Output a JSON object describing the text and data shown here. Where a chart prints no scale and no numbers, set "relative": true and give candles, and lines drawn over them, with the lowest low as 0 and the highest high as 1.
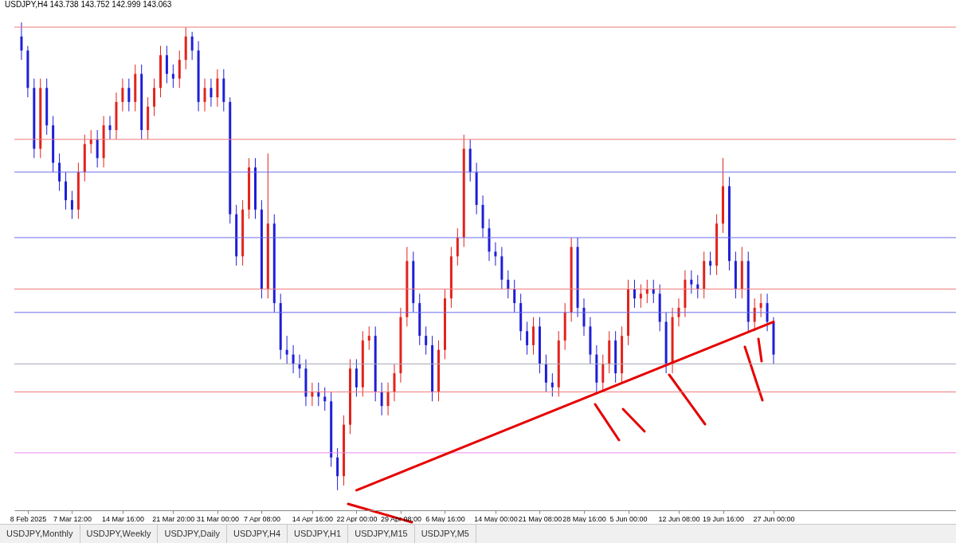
{
  "chart_data": {
    "type": "candlestick",
    "title": "USDJPY,H4  143.738 143.752 142.999 143.063",
    "relative": true,
    "categories": [
      null,
      "8 Feb 2025",
      null,
      null,
      null,
      null,
      null,
      null,
      "7 Mar 12:00",
      null,
      null,
      null,
      null,
      null,
      null,
      null,
      "14 Mar 16:00",
      null,
      null,
      null,
      null,
      null,
      null,
      null,
      "21 Mar 20:00",
      null,
      null,
      null,
      null,
      null,
      null,
      "31 Mar 00:00",
      null,
      null,
      null,
      null,
      null,
      null,
      "7 Apr 08:00",
      null,
      null,
      null,
      null,
      null,
      null,
      null,
      "14 Apr 16:00",
      null,
      null,
      null,
      null,
      null,
      null,
      "22 Apr 00:00",
      null,
      null,
      null,
      null,
      null,
      null,
      "29 Apr 08:00",
      null,
      null,
      null,
      null,
      null,
      null,
      "6 May 16:00",
      null,
      null,
      null,
      null,
      null,
      null,
      null,
      "14 May 00:00",
      null,
      null,
      null,
      null,
      null,
      null,
      "21 May 08:00",
      null,
      null,
      null,
      null,
      null,
      null,
      "28 May 16:00",
      null,
      null,
      null,
      null,
      null,
      null,
      "5 Jun 00:00",
      null,
      null,
      null,
      null,
      null,
      null,
      null,
      "12 Jun 08:00",
      null,
      null,
      null,
      null,
      null,
      null,
      "19 Jun 16:00",
      null,
      null,
      null,
      null,
      null,
      null,
      null,
      "27 Jun 00:00"
    ],
    "colors": [
      "#1e1ed8",
      "#1e1ed8",
      "#1e1ed8",
      "#e3221c",
      "#1e1ed8",
      "#1e1ed8",
      "#1e1ed8",
      "#1e1ed8",
      "#1e1ed8",
      "#e3221c",
      "#e3221c",
      "#e3221c",
      "#1e1ed8",
      "#e3221c",
      "#1e1ed8",
      "#e3221c",
      "#e3221c",
      "#1e1ed8",
      "#e3221c",
      "#1e1ed8",
      "#e3221c",
      "#e3221c",
      "#e3221c",
      "#1e1ed8",
      "#1e1ed8",
      "#e3221c",
      "#e3221c",
      "#1e1ed8",
      "#1e1ed8",
      "#e3221c",
      "#1e1ed8",
      "#e3221c",
      "#1e1ed8",
      "#1e1ed8",
      "#1e1ed8",
      "#e3221c",
      "#e3221c",
      "#1e1ed8",
      "#1e1ed8",
      "#e3221c",
      "#1e1ed8",
      "#1e1ed8",
      "#1e1ed8",
      "#1e1ed8",
      "#1e1ed8",
      "#1e1ed8",
      "#e3221c",
      "#1e1ed8",
      "#1e1ed8",
      "#1e1ed8",
      "#1e1ed8",
      "#e3221c",
      "#e3221c",
      "#1e1ed8",
      "#e3221c",
      "#e3221c",
      "#1e1ed8",
      "#1e1ed8",
      "#e3221c",
      "#e3221c",
      "#e3221c",
      "#e3221c",
      "#1e1ed8",
      "#1e1ed8",
      "#1e1ed8",
      "#1e1ed8",
      "#e3221c",
      "#e3221c",
      "#e3221c",
      "#e3221c",
      "#e3221c",
      "#1e1ed8",
      "#1e1ed8",
      "#1e1ed8",
      "#1e1ed8",
      "#1e1ed8",
      "#1e1ed8",
      "#1e1ed8",
      "#1e1ed8",
      "#1e1ed8",
      "#1e1ed8",
      "#e3221c",
      "#1e1ed8",
      "#1e1ed8",
      "#1e1ed8",
      "#e3221c",
      "#e3221c",
      "#e3221c",
      "#1e1ed8",
      "#1e1ed8",
      "#1e1ed8",
      "#1e1ed8",
      "#e3221c",
      "#e3221c",
      "#1e1ed8",
      "#e3221c",
      "#e3221c",
      "#1e1ed8",
      "#e3221c",
      "#e3221c",
      "#1e1ed8",
      "#1e1ed8",
      "#1e1ed8",
      "#e3221c",
      "#e3221c",
      "#e3221c",
      "#1e1ed8",
      "#1e1ed8",
      "#e3221c",
      "#1e1ed8",
      "#e3221c",
      "#e3221c",
      "#1e1ed8",
      "#1e1ed8",
      "#e3221c",
      "#1e1ed8",
      "#e3221c",
      "#e3221c",
      "#1e1ed8",
      "#1e1ed8"
    ],
    "ohlc": [
      [
        0.97,
        1.0,
        0.92,
        0.94
      ],
      [
        0.94,
        0.95,
        0.84,
        0.86
      ],
      [
        0.86,
        0.88,
        0.71,
        0.73
      ],
      [
        0.73,
        0.88,
        0.71,
        0.86
      ],
      [
        0.86,
        0.88,
        0.76,
        0.78
      ],
      [
        0.78,
        0.8,
        0.68,
        0.7
      ],
      [
        0.7,
        0.72,
        0.64,
        0.66
      ],
      [
        0.66,
        0.68,
        0.6,
        0.62
      ],
      [
        0.62,
        0.64,
        0.58,
        0.6
      ],
      [
        0.6,
        0.7,
        0.58,
        0.68
      ],
      [
        0.68,
        0.76,
        0.66,
        0.74
      ],
      [
        0.74,
        0.77,
        0.72,
        0.75
      ],
      [
        0.75,
        0.77,
        0.69,
        0.71
      ],
      [
        0.71,
        0.8,
        0.69,
        0.78
      ],
      [
        0.78,
        0.8,
        0.75,
        0.77
      ],
      [
        0.77,
        0.85,
        0.75,
        0.83
      ],
      [
        0.83,
        0.88,
        0.81,
        0.86
      ],
      [
        0.86,
        0.88,
        0.81,
        0.83
      ],
      [
        0.83,
        0.91,
        0.81,
        0.89
      ],
      [
        0.89,
        0.91,
        0.75,
        0.77
      ],
      [
        0.77,
        0.84,
        0.75,
        0.82
      ],
      [
        0.82,
        0.88,
        0.8,
        0.86
      ],
      [
        0.86,
        0.95,
        0.84,
        0.93
      ],
      [
        0.93,
        0.95,
        0.87,
        0.89
      ],
      [
        0.89,
        0.91,
        0.86,
        0.88
      ],
      [
        0.88,
        0.94,
        0.86,
        0.92
      ],
      [
        0.92,
        0.99,
        0.9,
        0.97
      ],
      [
        0.97,
        0.98,
        0.92,
        0.94
      ],
      [
        0.94,
        0.96,
        0.81,
        0.83
      ],
      [
        0.83,
        0.88,
        0.81,
        0.86
      ],
      [
        0.86,
        0.88,
        0.82,
        0.84
      ],
      [
        0.84,
        0.9,
        0.82,
        0.88
      ],
      [
        0.88,
        0.9,
        0.81,
        0.83
      ],
      [
        0.83,
        0.84,
        0.57,
        0.59
      ],
      [
        0.59,
        0.61,
        0.48,
        0.5
      ],
      [
        0.5,
        0.62,
        0.48,
        0.6
      ],
      [
        0.6,
        0.71,
        0.58,
        0.69
      ],
      [
        0.69,
        0.71,
        0.58,
        0.6
      ],
      [
        0.6,
        0.62,
        0.41,
        0.43
      ],
      [
        0.43,
        0.72,
        0.41,
        0.57
      ],
      [
        0.57,
        0.59,
        0.38,
        0.4
      ],
      [
        0.4,
        0.42,
        0.28,
        0.3
      ],
      [
        0.3,
        0.33,
        0.27,
        0.29
      ],
      [
        0.29,
        0.31,
        0.25,
        0.27
      ],
      [
        0.27,
        0.29,
        0.24,
        0.26
      ],
      [
        0.26,
        0.28,
        0.18,
        0.2
      ],
      [
        0.2,
        0.23,
        0.18,
        0.21
      ],
      [
        0.21,
        0.23,
        0.18,
        0.2
      ],
      [
        0.2,
        0.22,
        0.17,
        0.19
      ],
      [
        0.19,
        0.21,
        0.05,
        0.07
      ],
      [
        0.07,
        0.09,
        0,
        0.03
      ],
      [
        0.03,
        0.16,
        0.01,
        0.14
      ],
      [
        0.14,
        0.28,
        0.12,
        0.26
      ],
      [
        0.26,
        0.28,
        0.2,
        0.22
      ],
      [
        0.22,
        0.34,
        0.2,
        0.32
      ],
      [
        0.32,
        0.35,
        0.3,
        0.33
      ],
      [
        0.33,
        0.35,
        0.19,
        0.21
      ],
      [
        0.21,
        0.23,
        0.16,
        0.18
      ],
      [
        0.18,
        0.23,
        0.16,
        0.21
      ],
      [
        0.21,
        0.27,
        0.19,
        0.25
      ],
      [
        0.25,
        0.39,
        0.23,
        0.37
      ],
      [
        0.37,
        0.52,
        0.35,
        0.49
      ],
      [
        0.49,
        0.51,
        0.38,
        0.4
      ],
      [
        0.4,
        0.42,
        0.31,
        0.33
      ],
      [
        0.33,
        0.35,
        0.29,
        0.31
      ],
      [
        0.31,
        0.33,
        0.19,
        0.21
      ],
      [
        0.21,
        0.32,
        0.19,
        0.3
      ],
      [
        0.3,
        0.43,
        0.28,
        0.41
      ],
      [
        0.41,
        0.52,
        0.39,
        0.5
      ],
      [
        0.5,
        0.56,
        0.48,
        0.54
      ],
      [
        0.54,
        0.76,
        0.52,
        0.73
      ],
      [
        0.73,
        0.75,
        0.66,
        0.68
      ],
      [
        0.68,
        0.7,
        0.59,
        0.61
      ],
      [
        0.61,
        0.63,
        0.54,
        0.56
      ],
      [
        0.56,
        0.58,
        0.49,
        0.51
      ],
      [
        0.51,
        0.53,
        0.48,
        0.5
      ],
      [
        0.5,
        0.52,
        0.43,
        0.45
      ],
      [
        0.45,
        0.47,
        0.41,
        0.43
      ],
      [
        0.43,
        0.45,
        0.38,
        0.4
      ],
      [
        0.4,
        0.42,
        0.32,
        0.34
      ],
      [
        0.34,
        0.36,
        0.29,
        0.31
      ],
      [
        0.31,
        0.37,
        0.29,
        0.35
      ],
      [
        0.35,
        0.37,
        0.25,
        0.27
      ],
      [
        0.27,
        0.29,
        0.21,
        0.23
      ],
      [
        0.23,
        0.25,
        0.2,
        0.22
      ],
      [
        0.22,
        0.34,
        0.2,
        0.32
      ],
      [
        0.32,
        0.4,
        0.3,
        0.38
      ],
      [
        0.38,
        0.54,
        0.36,
        0.52
      ],
      [
        0.52,
        0.54,
        0.37,
        0.39
      ],
      [
        0.39,
        0.41,
        0.33,
        0.35
      ],
      [
        0.35,
        0.37,
        0.27,
        0.29
      ],
      [
        0.29,
        0.31,
        0.21,
        0.23
      ],
      [
        0.23,
        0.29,
        0.21,
        0.27
      ],
      [
        0.27,
        0.34,
        0.25,
        0.32
      ],
      [
        0.32,
        0.34,
        0.23,
        0.25
      ],
      [
        0.25,
        0.35,
        0.23,
        0.33
      ],
      [
        0.33,
        0.45,
        0.31,
        0.43
      ],
      [
        0.43,
        0.45,
        0.39,
        0.41
      ],
      [
        0.41,
        0.44,
        0.39,
        0.42
      ],
      [
        0.42,
        0.45,
        0.4,
        0.43
      ],
      [
        0.43,
        0.45,
        0.4,
        0.42
      ],
      [
        0.42,
        0.44,
        0.34,
        0.36
      ],
      [
        0.36,
        0.38,
        0.25,
        0.27
      ],
      [
        0.27,
        0.39,
        0.25,
        0.37
      ],
      [
        0.37,
        0.41,
        0.35,
        0.39
      ],
      [
        0.39,
        0.47,
        0.37,
        0.45
      ],
      [
        0.45,
        0.47,
        0.42,
        0.44
      ],
      [
        0.44,
        0.46,
        0.41,
        0.43
      ],
      [
        0.43,
        0.51,
        0.41,
        0.49
      ],
      [
        0.49,
        0.51,
        0.46,
        0.48
      ],
      [
        0.48,
        0.59,
        0.46,
        0.57
      ],
      [
        0.57,
        0.71,
        0.55,
        0.65
      ],
      [
        0.65,
        0.67,
        0.47,
        0.49
      ],
      [
        0.49,
        0.51,
        0.41,
        0.43
      ],
      [
        0.43,
        0.52,
        0.41,
        0.49
      ],
      [
        0.49,
        0.51,
        0.34,
        0.36
      ],
      [
        0.36,
        0.41,
        0.34,
        0.39
      ],
      [
        0.39,
        0.42,
        0.37,
        0.4
      ],
      [
        0.4,
        0.42,
        0.34,
        0.36
      ],
      [
        0.36,
        0.37,
        0.27,
        0.29
      ]
    ],
    "series": [
      {
        "type": "line",
        "color": "#e60000",
        "values": [
          null,
          null,
          null,
          null,
          null,
          null,
          null,
          null,
          null,
          null,
          null,
          null,
          null,
          null,
          null,
          null,
          null,
          null,
          null,
          null,
          null,
          null,
          null,
          null,
          null,
          null,
          null,
          null,
          null,
          null,
          null,
          null,
          null,
          null,
          null,
          null,
          null,
          null,
          null,
          null,
          null,
          null,
          null,
          null,
          null,
          null,
          null,
          null,
          null,
          null,
          null,
          null,
          null,
          0,
          null,
          null,
          null,
          null,
          null,
          null,
          null,
          null,
          null,
          null,
          null,
          null,
          null,
          null,
          null,
          null,
          null,
          null,
          null,
          null,
          null,
          null,
          null,
          null,
          null,
          null,
          null,
          null,
          null,
          null,
          null,
          null,
          null,
          null,
          null,
          null,
          null,
          null,
          null,
          null,
          null,
          null,
          null,
          null,
          null,
          null,
          null,
          null,
          null,
          null,
          null,
          null,
          null,
          null,
          null,
          null,
          null,
          null,
          null,
          null,
          null,
          null,
          null,
          null,
          null,
          0.36
        ]
      }
    ],
    "ref_lines": [
      {
        "axis": "y",
        "value": 0.99,
        "color": "#f07a7a"
      },
      {
        "axis": "y",
        "value": 0.75,
        "color": "#f07a7a"
      },
      {
        "axis": "y",
        "value": 0.68,
        "color": "#6b6bea"
      },
      {
        "axis": "y",
        "value": 0.54,
        "color": "#6b6bea"
      },
      {
        "axis": "y",
        "value": 0.43,
        "color": "#f07a7a"
      },
      {
        "axis": "y",
        "value": 0.38,
        "color": "#6b6bea"
      },
      {
        "axis": "y",
        "value": 0.27,
        "color": "#a6a6b4"
      },
      {
        "axis": "y",
        "value": 0.21,
        "color": "#f07a7a"
      },
      {
        "axis": "y",
        "value": 0.08,
        "color": "#ee88ee"
      }
    ],
    "annotations": [
      "USDJPY,Monthly",
      "USDJPY,Weekly",
      "USDJPY,Daily",
      "USDJPY,H4",
      "USDJPY,H1",
      "USDJPY,M15",
      "USDJPY,M5"
    ]
  }
}
